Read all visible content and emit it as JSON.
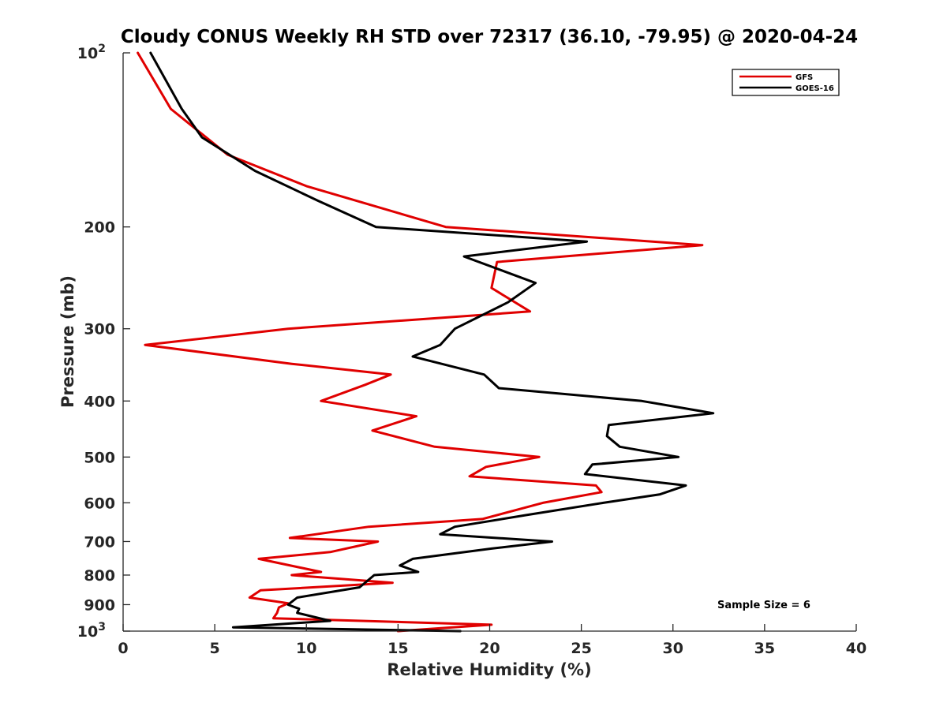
{
  "chart_data": {
    "type": "line",
    "title": "Cloudy CONUS Weekly RH STD over 72317 (36.10, -79.95) @ 2020-04-24",
    "xlabel": "Relative Humidity (%)",
    "ylabel": "Pressure (mb)",
    "xlim": [
      0,
      40
    ],
    "ylim": [
      100,
      1000
    ],
    "y_scale": "log",
    "y_reversed": true,
    "grid": false,
    "legend_position": "top-right",
    "x_ticks": [
      "0",
      "5",
      "10",
      "15",
      "20",
      "25",
      "30",
      "35",
      "40"
    ],
    "y_ticks": [
      {
        "value": 100,
        "base": "10",
        "exp": "2"
      },
      {
        "value": 200,
        "label": "200"
      },
      {
        "value": 300,
        "label": "300"
      },
      {
        "value": 400,
        "label": "400"
      },
      {
        "value": 500,
        "label": "500"
      },
      {
        "value": 600,
        "label": "600"
      },
      {
        "value": 700,
        "label": "700"
      },
      {
        "value": 800,
        "label": "800"
      },
      {
        "value": 900,
        "label": "900"
      },
      {
        "value": 1000,
        "base": "10",
        "exp": "3"
      }
    ],
    "series": [
      {
        "name": "GFS",
        "color": "#e00000",
        "points": [
          [
            0.8,
            100
          ],
          [
            2.6,
            125
          ],
          [
            5.7,
            150
          ],
          [
            10.0,
            170
          ],
          [
            17.6,
            200
          ],
          [
            31.6,
            215
          ],
          [
            20.4,
            230
          ],
          [
            20.1,
            255
          ],
          [
            22.2,
            280
          ],
          [
            9.0,
            300
          ],
          [
            1.2,
            320
          ],
          [
            9.2,
            345
          ],
          [
            14.6,
            360
          ],
          [
            13.2,
            375
          ],
          [
            10.8,
            400
          ],
          [
            16.0,
            425
          ],
          [
            13.6,
            450
          ],
          [
            17.0,
            480
          ],
          [
            22.7,
            500
          ],
          [
            19.8,
            520
          ],
          [
            18.9,
            540
          ],
          [
            25.8,
            560
          ],
          [
            26.1,
            575
          ],
          [
            22.9,
            600
          ],
          [
            19.6,
            640
          ],
          [
            13.4,
            660
          ],
          [
            9.1,
            690
          ],
          [
            13.9,
            700
          ],
          [
            11.3,
            730
          ],
          [
            7.4,
            750
          ],
          [
            10.8,
            790
          ],
          [
            9.2,
            800
          ],
          [
            14.7,
            825
          ],
          [
            7.5,
            850
          ],
          [
            6.9,
            875
          ],
          [
            9.0,
            895
          ],
          [
            8.5,
            910
          ],
          [
            8.4,
            930
          ],
          [
            8.2,
            950
          ],
          [
            20.1,
            975
          ],
          [
            15.0,
            1000
          ]
        ]
      },
      {
        "name": "GOES-16",
        "color": "#000000",
        "points": [
          [
            1.5,
            100
          ],
          [
            3.2,
            125
          ],
          [
            4.3,
            140
          ],
          [
            7.2,
            160
          ],
          [
            10.6,
            180
          ],
          [
            13.8,
            200
          ],
          [
            25.3,
            212
          ],
          [
            18.6,
            225
          ],
          [
            22.5,
            250
          ],
          [
            21.0,
            270
          ],
          [
            18.1,
            300
          ],
          [
            17.3,
            320
          ],
          [
            15.8,
            335
          ],
          [
            19.7,
            360
          ],
          [
            20.5,
            380
          ],
          [
            28.3,
            400
          ],
          [
            32.2,
            420
          ],
          [
            26.5,
            440
          ],
          [
            26.4,
            460
          ],
          [
            27.1,
            480
          ],
          [
            30.3,
            500
          ],
          [
            25.6,
            515
          ],
          [
            25.2,
            535
          ],
          [
            30.7,
            560
          ],
          [
            29.3,
            580
          ],
          [
            26.2,
            600
          ],
          [
            22.0,
            630
          ],
          [
            18.1,
            660
          ],
          [
            17.3,
            680
          ],
          [
            23.4,
            700
          ],
          [
            20.1,
            720
          ],
          [
            15.8,
            750
          ],
          [
            15.1,
            770
          ],
          [
            16.1,
            790
          ],
          [
            13.7,
            800
          ],
          [
            13.4,
            815
          ],
          [
            12.9,
            840
          ],
          [
            9.5,
            875
          ],
          [
            9.0,
            900
          ],
          [
            9.6,
            915
          ],
          [
            9.5,
            930
          ],
          [
            11.3,
            960
          ],
          [
            6.0,
            985
          ],
          [
            18.4,
            1000
          ]
        ]
      }
    ],
    "annotation": "Sample Size = 6"
  }
}
